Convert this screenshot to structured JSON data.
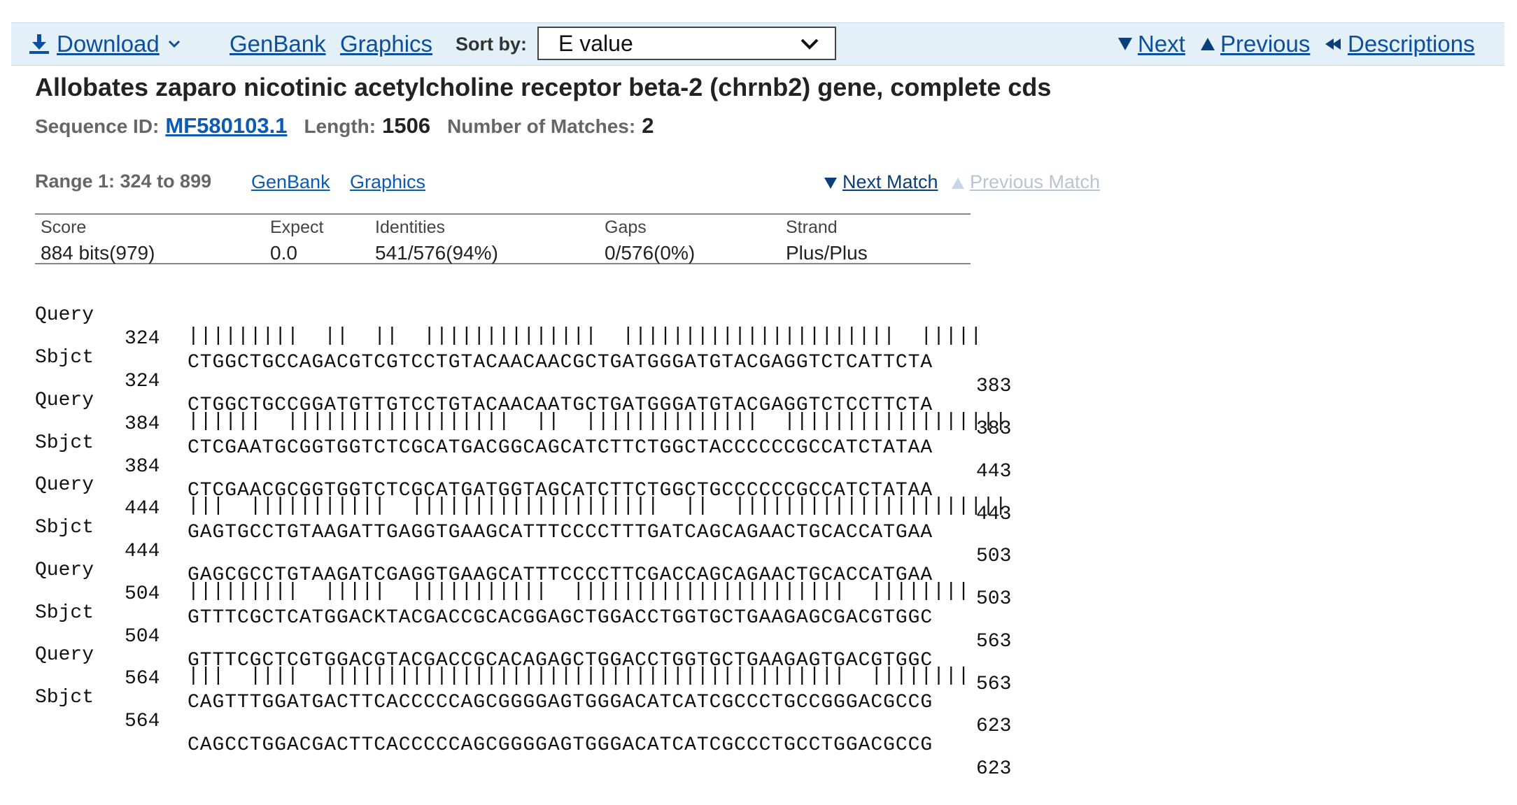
{
  "toolbar": {
    "download_label": "Download",
    "genbank_label": "GenBank",
    "graphics_label": "Graphics",
    "sort_label": "Sort by:",
    "sort_value": "E value",
    "next_label": "Next",
    "previous_label": "Previous",
    "descriptions_label": "Descriptions"
  },
  "hit": {
    "title": "Allobates zaparo nicotinic acetylcholine receptor beta-2 (chrnb2) gene, complete cds",
    "seq_id_label": "Sequence ID:",
    "seq_id": "MF580103.1",
    "length_label": "Length:",
    "length": "1506",
    "matches_label": "Number of Matches:",
    "matches": "2"
  },
  "range": {
    "label": "Range 1: 324 to 899",
    "genbank_label": "GenBank",
    "graphics_label": "Graphics",
    "next_match_label": "Next Match",
    "previous_match_label": "Previous Match"
  },
  "stats": {
    "score_header": "Score",
    "score": "884 bits(979)",
    "expect_header": "Expect",
    "expect": "0.0",
    "identities_header": "Identities",
    "identities": "541/576(94%)",
    "gaps_header": "Gaps",
    "gaps": "0/576(0%)",
    "strand_header": "Strand",
    "strand": "Plus/Plus"
  },
  "alignment": {
    "query_label": "Query",
    "sbjct_label": "Sbjct",
    "blocks": [
      {
        "q_start": "324",
        "q_seq": "CTGGCTGCCAGACGTCGTCCTGTACAACAACGCTGATGGGATGTACGAGGTCTCATTCTA",
        "q_end": "383",
        "match": "|||||||||  ||  ||  ||||||||||||||  ||||||||||||||||||||||  |||||",
        "s_start": "324",
        "s_seq": "CTGGCTGCCGGATGTTGTCCTGTACAACAATGCTGATGGGATGTACGAGGTCTCCTTCTA",
        "s_end": "383"
      },
      {
        "q_start": "384",
        "q_seq": "CTCGAATGCGGTGGTCTCGCATGACGGCAGCATCTTCTGGCTACCCCCCGCCATCTATAA",
        "q_end": "443",
        "match": "||||||  ||||||||||||||||||  ||  ||||||||||||||  ||||||||||||||||||",
        "s_start": "384",
        "s_seq": "CTCGAACGCGGTGGTCTCGCATGATGGTAGCATCTTCTGGCTGCCCCCCGCCATCTATAA",
        "s_end": "443"
      },
      {
        "q_start": "444",
        "q_seq": "GAGTGCCTGTAAGATTGAGGTGAAGCATTTCCCCTTTGATCAGCAGAACTGCACCATGAA",
        "q_end": "503",
        "match": "|||  |||||||||||  ||||||||||||||||||||  ||  ||||||||||||||||||||||",
        "s_start": "444",
        "s_seq": "GAGCGCCTGTAAGATCGAGGTGAAGCATTTCCCCTTCGACCAGCAGAACTGCACCATGAA",
        "s_end": "503"
      },
      {
        "q_start": "504",
        "q_seq": "GTTTCGCTCATGGACKTACGACCGCACGGAGCTGGACCTGGTGCTGAAGAGCGACGTGGC",
        "q_end": "563",
        "match": "|||||||||  |||||  |||||||||||  ||||||||||||||||||||||  ||||||||",
        "s_start": "504",
        "s_seq": "GTTTCGCTCGTGGACGTACGACCGCACAGAGCTGGACCTGGTGCTGAAGAGTGACGTGGC",
        "s_end": "563"
      },
      {
        "q_start": "564",
        "q_seq": "CAGTTTGGATGACTTCACCCCCAGCGGGGAGTGGGACATCATCGCCCTGCCGGGACGCCG",
        "q_end": "623",
        "match": "|||  ||||  ||||||||||||||||||||||||||||||||||||||||||  ||||||||",
        "s_start": "564",
        "s_seq": "CAGCCTGGACGACTTCACCCCCAGCGGGGAGTGGGACATCATCGCCCTGCCTGGACGCCG",
        "s_end": "623"
      }
    ]
  },
  "colors": {
    "toolbar_bg": "#e3f0f8",
    "link": "#0b4f9e",
    "disabled_link": "#b9c4cf"
  }
}
